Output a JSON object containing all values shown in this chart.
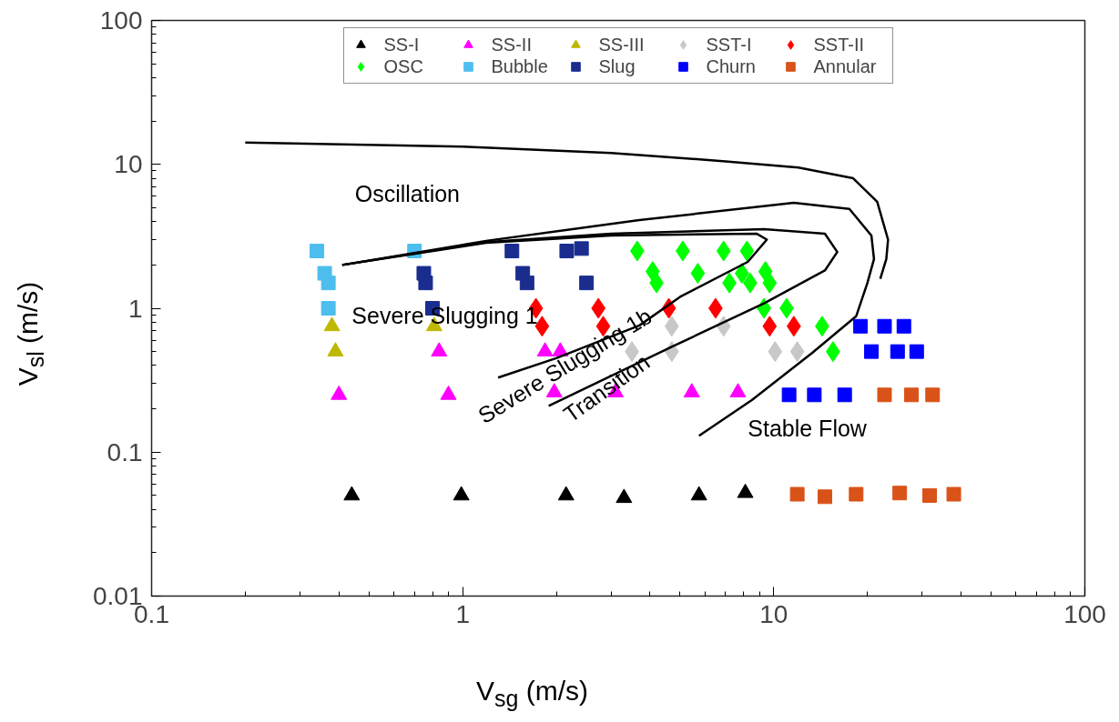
{
  "chart_data": {
    "type": "scatter",
    "xlabel": "V$_{sg}$ (m/s)",
    "ylabel": "V$_{sl}$ (m/s)",
    "log": "xy",
    "xlim": [
      0.1,
      100
    ],
    "ylim": [
      0.01,
      100
    ],
    "xticks": [
      0.1,
      1,
      10,
      100
    ],
    "yticks": [
      0.01,
      0.1,
      1,
      10,
      100
    ],
    "grid": false,
    "legend": "top",
    "series": [
      {
        "name": "SS-I",
        "marker": "triangle",
        "color": "#000000",
        "x": [
          0.44,
          0.99,
          2.15,
          3.3,
          5.75,
          8.1
        ],
        "values": [
          0.05,
          0.05,
          0.05,
          0.048,
          0.05,
          0.052
        ]
      },
      {
        "name": "SS-II",
        "marker": "triangle",
        "color": "#ff00ff",
        "x": [
          0.84,
          0.4,
          0.9,
          1.84,
          2.06,
          1.97,
          3.1,
          5.45,
          7.67
        ],
        "values": [
          0.5,
          0.25,
          0.25,
          0.5,
          0.5,
          0.26,
          0.26,
          0.26,
          0.26
        ]
      },
      {
        "name": "SS-III",
        "marker": "triangle",
        "color": "#bfb800",
        "x": [
          0.38,
          0.39,
          0.81
        ],
        "values": [
          0.75,
          0.5,
          0.75
        ]
      },
      {
        "name": "SST-I",
        "marker": "diamond",
        "color": "#c8c8c8",
        "x": [
          3.5,
          4.7,
          4.7,
          6.9,
          10.1,
          11.9
        ],
        "values": [
          0.5,
          0.5,
          0.75,
          0.75,
          0.5,
          0.5
        ]
      },
      {
        "name": "SST-II",
        "marker": "diamond",
        "color": "#ff0000",
        "x": [
          1.72,
          1.8,
          2.73,
          2.83,
          4.6,
          6.5,
          9.7,
          11.6
        ],
        "values": [
          1.0,
          0.75,
          1.0,
          0.75,
          1.0,
          1.0,
          0.75,
          0.75
        ]
      },
      {
        "name": "OSC",
        "marker": "diamond",
        "color": "#00ff00",
        "x": [
          3.64,
          4.08,
          4.2,
          5.1,
          5.7,
          6.9,
          7.2,
          8.2,
          7.9,
          8.4,
          9.4,
          9.7,
          9.3,
          11.0,
          14.3,
          15.5
        ],
        "values": [
          2.5,
          1.8,
          1.5,
          2.5,
          1.75,
          2.5,
          1.5,
          2.5,
          1.75,
          1.5,
          1.8,
          1.5,
          1.0,
          1.0,
          0.75,
          0.5
        ]
      },
      {
        "name": "Bubble",
        "marker": "square",
        "color": "#4dbeee",
        "x": [
          0.34,
          0.36,
          0.37,
          0.37,
          0.7
        ],
        "values": [
          2.5,
          1.75,
          1.5,
          1.0,
          2.5
        ]
      },
      {
        "name": "Slug",
        "marker": "square",
        "color": "#1a2d8f",
        "x": [
          0.75,
          0.76,
          0.8,
          1.44,
          1.56,
          1.61,
          2.16,
          2.41,
          2.5
        ],
        "values": [
          1.75,
          1.5,
          1.0,
          2.5,
          1.75,
          1.5,
          2.5,
          2.6,
          1.5
        ]
      },
      {
        "name": "Churn",
        "marker": "square",
        "color": "#0000ff",
        "x": [
          19.0,
          22.7,
          26.2,
          20.6,
          25.0,
          28.8,
          11.2,
          13.5,
          16.9
        ],
        "values": [
          0.75,
          0.75,
          0.75,
          0.5,
          0.5,
          0.5,
          0.25,
          0.25,
          0.25
        ]
      },
      {
        "name": "Annular",
        "marker": "square",
        "color": "#d95319",
        "x": [
          22.7,
          27.7,
          32.4,
          11.9,
          14.6,
          18.4,
          25.4,
          31.7,
          37.9
        ],
        "values": [
          0.25,
          0.25,
          0.25,
          0.051,
          0.049,
          0.051,
          0.052,
          0.05,
          0.051
        ]
      },
      {
        "type": "line",
        "color": "#000000",
        "x": [
          0.2,
          1,
          3,
          7,
          12,
          18,
          21.5,
          23.3,
          23.0,
          22.0
        ],
        "values": [
          14.2,
          13.3,
          12,
          10.5,
          9.5,
          8,
          5.5,
          3,
          2.2,
          1.6
        ]
      },
      {
        "type": "line",
        "color": "#000000",
        "x": [
          0.41,
          1.19,
          3.7,
          11.6,
          17.5,
          20.6,
          21,
          20,
          18.4,
          13.3,
          8.5,
          5.75
        ],
        "values": [
          2.0,
          2.94,
          4.1,
          5.4,
          4.9,
          3.2,
          2.2,
          1.5,
          0.88,
          0.49,
          0.23,
          0.13
        ]
      },
      {
        "type": "line",
        "color": "#000000",
        "x": [
          0.41,
          1.19,
          3,
          9.3,
          14.6,
          16,
          14.6,
          9.3,
          4.7,
          1.89
        ],
        "values": [
          2.0,
          2.88,
          3.3,
          3.55,
          3.3,
          2.46,
          1.83,
          1.08,
          0.54,
          0.21
        ]
      },
      {
        "type": "line",
        "color": "#000000",
        "x": [
          0.41,
          1.19,
          3,
          8.8,
          9.5,
          8.25,
          5,
          3.7,
          2,
          1.3
        ],
        "values": [
          2.0,
          2.85,
          3.2,
          3.3,
          3.0,
          2.1,
          1.2,
          0.76,
          0.45,
          0.33
        ]
      }
    ],
    "annotations": [
      "Oscillation",
      "Severe Slugging 1",
      "Severe Slugging 1b",
      "Transition",
      "Stable Flow"
    ]
  }
}
